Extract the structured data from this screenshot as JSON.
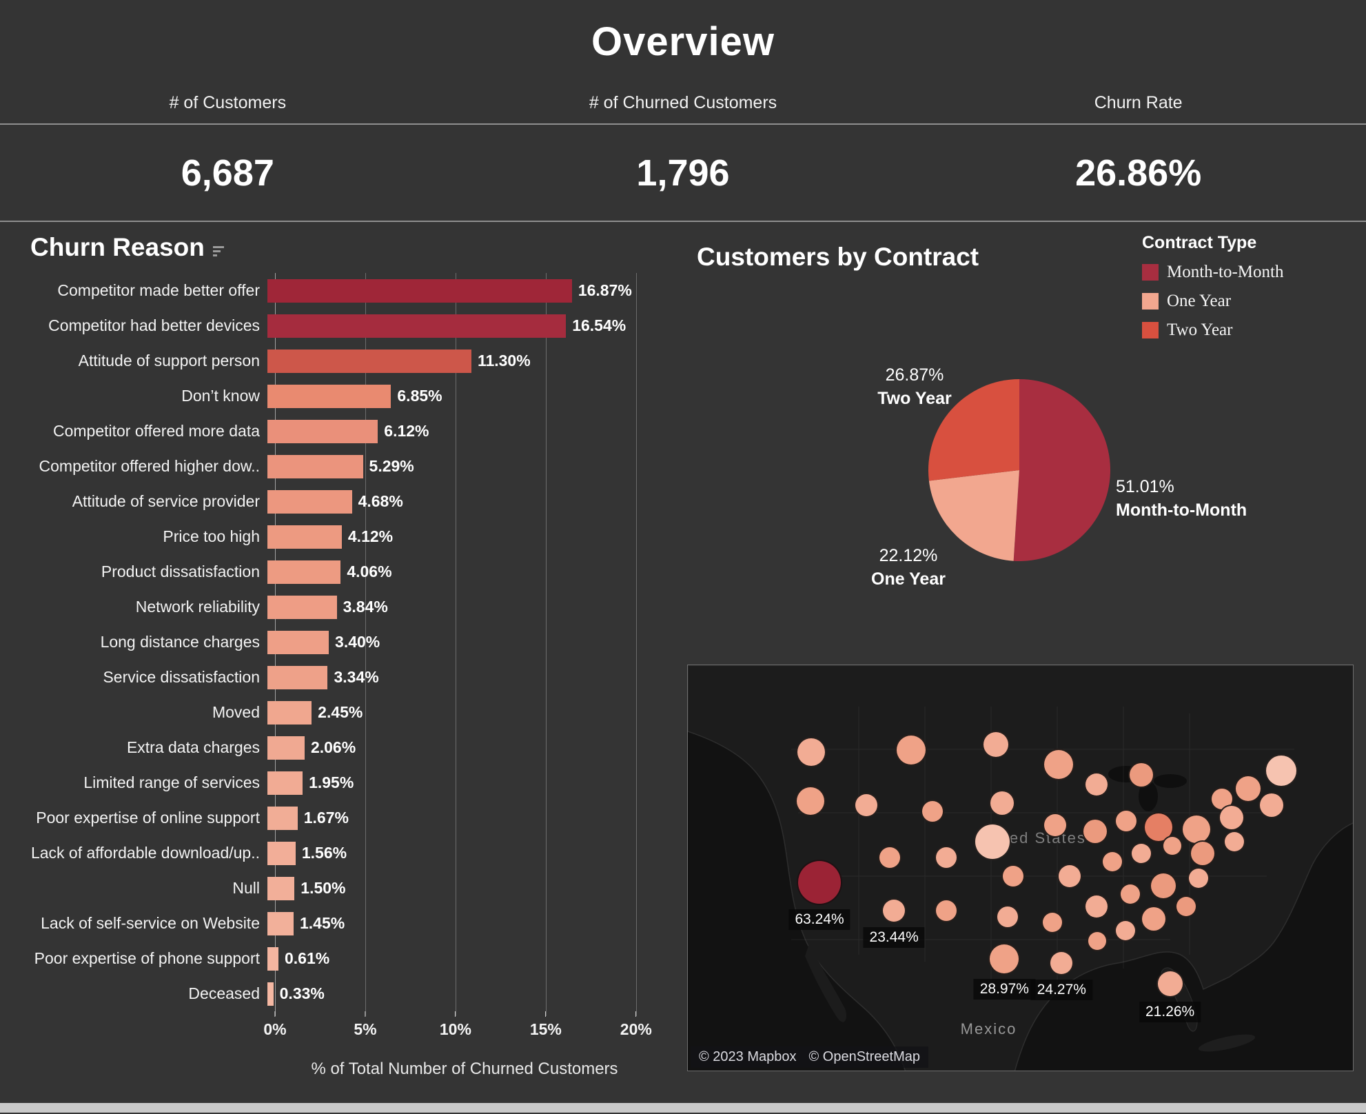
{
  "header": {
    "title": "Overview"
  },
  "kpis": [
    {
      "label": "# of Customers",
      "value": "6,687"
    },
    {
      "label": "# of Churned Customers",
      "value": "1,796"
    },
    {
      "label": "Churn Rate",
      "value": "26.86%"
    }
  ],
  "chart_data": [
    {
      "id": "churn_reason",
      "type": "bar",
      "orientation": "horizontal",
      "title": "Churn Reason",
      "xlabel": "% of Total Number of Churned Customers",
      "xlim": [
        0,
        21
      ],
      "x_ticks": [
        "0%",
        "5%",
        "10%",
        "15%",
        "20%"
      ],
      "tick_values": [
        0,
        5,
        10,
        15,
        20
      ],
      "grid": true,
      "categories": [
        "Competitor made better offer",
        "Competitor had better devices",
        "Attitude of support person",
        "Don’t know",
        "Competitor offered more data",
        "Competitor offered higher dow..",
        "Attitude of service provider",
        "Price too high",
        "Product dissatisfaction",
        "Network reliability",
        "Long distance charges",
        "Service dissatisfaction",
        "Moved",
        "Extra data charges",
        "Limited range of services",
        "Poor expertise of online support",
        "Lack of affordable download/up..",
        "Null",
        "Lack of self-service on Website",
        "Poor expertise of phone support",
        "Deceased"
      ],
      "values": [
        16.87,
        16.54,
        11.3,
        6.85,
        6.12,
        5.29,
        4.68,
        4.12,
        4.06,
        3.84,
        3.4,
        3.34,
        2.45,
        2.06,
        1.95,
        1.67,
        1.56,
        1.5,
        1.45,
        0.61,
        0.33
      ],
      "value_labels": [
        "16.87%",
        "16.54%",
        "11.30%",
        "6.85%",
        "6.12%",
        "5.29%",
        "4.68%",
        "4.12%",
        "4.06%",
        "3.84%",
        "3.40%",
        "3.34%",
        "2.45%",
        "2.06%",
        "1.95%",
        "1.67%",
        "1.56%",
        "1.50%",
        "1.45%",
        "0.61%",
        "0.33%"
      ],
      "bar_colors": [
        "#9f2638",
        "#a52c3e",
        "#cd574a",
        "#e98a70",
        "#ea907a",
        "#eb947d",
        "#ec977f",
        "#ed9a81",
        "#ed9b82",
        "#ee9d85",
        "#ee9f87",
        "#eea189",
        "#f0a78f",
        "#f0a992",
        "#f1ab94",
        "#f1ad96",
        "#f2ae98",
        "#f2af99",
        "#f2b09a",
        "#f4b5a0",
        "#f5b8a3"
      ]
    },
    {
      "id": "customers_by_contract",
      "type": "pie",
      "title": "Customers by Contract",
      "legend_title": "Contract Type",
      "direction": "clockwise",
      "start_angle_deg": 0,
      "slices": [
        {
          "label": "Month-to-Month",
          "value": 51.01,
          "pct_label": "51.01%",
          "color": "#a82e40"
        },
        {
          "label": "One Year",
          "value": 22.12,
          "pct_label": "22.12%",
          "color": "#f2a78f"
        },
        {
          "label": "Two Year",
          "value": 26.87,
          "pct_label": "26.87%",
          "color": "#d8503f"
        }
      ]
    },
    {
      "id": "churn_rate_map",
      "type": "map-bubble",
      "geo_labels": [
        "United States",
        "Mexico"
      ],
      "attribution": [
        "© 2023 Mapbox",
        "© OpenStreetMap"
      ],
      "bubbles": [
        {
          "x": 18.6,
          "y": 21.5,
          "r": 22,
          "color": "#f2ac94"
        },
        {
          "x": 33.6,
          "y": 21.0,
          "r": 23,
          "color": "#efa287"
        },
        {
          "x": 46.3,
          "y": 19.5,
          "r": 20,
          "color": "#f2ac94"
        },
        {
          "x": 55.8,
          "y": 24.5,
          "r": 23,
          "color": "#efa287"
        },
        {
          "x": 61.5,
          "y": 29.5,
          "r": 18,
          "color": "#f2ac94"
        },
        {
          "x": 68.2,
          "y": 27.0,
          "r": 19,
          "color": "#eb9a7e"
        },
        {
          "x": 89.2,
          "y": 26.0,
          "r": 24,
          "color": "#f6c3b0"
        },
        {
          "x": 84.2,
          "y": 30.5,
          "r": 20,
          "color": "#efa287"
        },
        {
          "x": 87.8,
          "y": 34.5,
          "r": 19,
          "color": "#f2ac94"
        },
        {
          "x": 80.3,
          "y": 33.0,
          "r": 17,
          "color": "#efa287"
        },
        {
          "x": 18.4,
          "y": 33.5,
          "r": 22,
          "color": "#efa287"
        },
        {
          "x": 26.8,
          "y": 34.5,
          "r": 18,
          "color": "#f2ac94"
        },
        {
          "x": 36.8,
          "y": 36.0,
          "r": 17,
          "color": "#efa287"
        },
        {
          "x": 47.3,
          "y": 34.0,
          "r": 19,
          "color": "#f2ac94"
        },
        {
          "x": 55.2,
          "y": 39.5,
          "r": 18,
          "color": "#efa287"
        },
        {
          "x": 45.8,
          "y": 43.5,
          "r": 27,
          "color": "#f6c3b0"
        },
        {
          "x": 61.2,
          "y": 41.0,
          "r": 19,
          "color": "#eb9a7e"
        },
        {
          "x": 65.9,
          "y": 38.5,
          "r": 17,
          "color": "#efa287"
        },
        {
          "x": 70.8,
          "y": 40.0,
          "r": 22,
          "color": "#e57f64"
        },
        {
          "x": 76.5,
          "y": 40.5,
          "r": 22,
          "color": "#efa287"
        },
        {
          "x": 81.8,
          "y": 37.5,
          "r": 19,
          "color": "#f2ac94"
        },
        {
          "x": 19.8,
          "y": 53.5,
          "r": 33,
          "color": "#9b2335",
          "label": "63.24%"
        },
        {
          "x": 30.4,
          "y": 47.5,
          "r": 17,
          "color": "#efa287"
        },
        {
          "x": 38.9,
          "y": 47.5,
          "r": 17,
          "color": "#f2ac94"
        },
        {
          "x": 48.9,
          "y": 52.0,
          "r": 17,
          "color": "#efa287"
        },
        {
          "x": 57.4,
          "y": 52.0,
          "r": 18,
          "color": "#f2ac94"
        },
        {
          "x": 63.8,
          "y": 48.5,
          "r": 16,
          "color": "#efa287"
        },
        {
          "x": 68.2,
          "y": 46.5,
          "r": 16,
          "color": "#f2ac94"
        },
        {
          "x": 72.8,
          "y": 44.5,
          "r": 15,
          "color": "#efa287"
        },
        {
          "x": 77.4,
          "y": 46.5,
          "r": 19,
          "color": "#eb9a7e"
        },
        {
          "x": 82.2,
          "y": 43.5,
          "r": 16,
          "color": "#f2ac94"
        },
        {
          "x": 31.0,
          "y": 60.5,
          "r": 18,
          "color": "#f2ac94",
          "label": "23.44%"
        },
        {
          "x": 38.9,
          "y": 60.5,
          "r": 17,
          "color": "#efa287"
        },
        {
          "x": 48.1,
          "y": 62.0,
          "r": 17,
          "color": "#f2ac94"
        },
        {
          "x": 54.8,
          "y": 63.5,
          "r": 16,
          "color": "#efa287"
        },
        {
          "x": 61.4,
          "y": 59.5,
          "r": 18,
          "color": "#f2ac94"
        },
        {
          "x": 66.5,
          "y": 56.5,
          "r": 16,
          "color": "#efa287"
        },
        {
          "x": 71.5,
          "y": 54.5,
          "r": 20,
          "color": "#eb9a7e"
        },
        {
          "x": 76.8,
          "y": 52.5,
          "r": 16,
          "color": "#f2ac94"
        },
        {
          "x": 47.6,
          "y": 72.5,
          "r": 23,
          "color": "#efa287",
          "label": "28.97%"
        },
        {
          "x": 56.2,
          "y": 73.5,
          "r": 18,
          "color": "#f2ac94",
          "label": "24.27%"
        },
        {
          "x": 61.6,
          "y": 68.0,
          "r": 15,
          "color": "#efa287"
        },
        {
          "x": 65.8,
          "y": 65.5,
          "r": 16,
          "color": "#f2ac94"
        },
        {
          "x": 70.1,
          "y": 62.5,
          "r": 19,
          "color": "#efa287"
        },
        {
          "x": 74.9,
          "y": 59.5,
          "r": 16,
          "color": "#eb9a7e"
        },
        {
          "x": 72.5,
          "y": 78.5,
          "r": 20,
          "color": "#f2ac94",
          "label": "21.26%"
        }
      ]
    }
  ]
}
